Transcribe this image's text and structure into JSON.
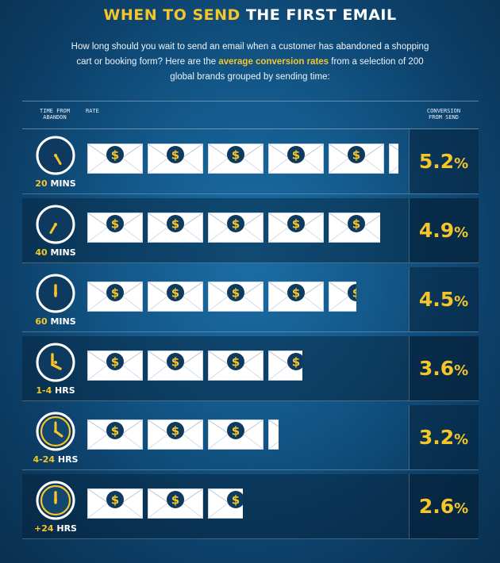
{
  "title": {
    "part1": "WHEN TO SEND",
    "part2": "THE FIRST EMAIL"
  },
  "intro": {
    "line_a": "How long should you wait to send an email when a customer has abandoned a shopping cart or booking form?  Here are the ",
    "highlight": "average conversion rates",
    "line_b": " from a selection of 200 global brands grouped by sending time:"
  },
  "columns": {
    "time": "TIME FROM ABANDON",
    "rate": "RATE",
    "conversion": "CONVERSION FROM SEND"
  },
  "colors": {
    "accent": "#f5c52a",
    "envelope": "#ffffff",
    "coin": "#0e3a5f"
  },
  "icon_names": {
    "clock": "clock-icon",
    "envelope": "envelope-dollar-icon"
  },
  "chart_data": {
    "type": "bar",
    "categories": [
      "20 MINS",
      "40 MINS",
      "60 MINS",
      "1-4 HRS",
      "4-24 HRS",
      "+24 HRS"
    ],
    "series": [
      {
        "values": [
          5.2,
          4.9,
          4.5,
          3.6,
          3.2,
          2.6
        ]
      }
    ],
    "unit": "%",
    "xlim": [
      0,
      5.2
    ]
  },
  "rows": [
    {
      "num": "20",
      "unit": " MINS",
      "value": "5.2",
      "pct": "%",
      "hand_deg": 150,
      "filled": false
    },
    {
      "num": "40",
      "unit": " MINS",
      "value": "4.9",
      "pct": "%",
      "hand_deg": 210,
      "filled": false
    },
    {
      "num": "60",
      "unit": " MINS",
      "value": "4.5",
      "pct": "%",
      "hand_deg": 0,
      "filled": false
    },
    {
      "num": "1-4",
      "unit": " HRS",
      "value": "3.6",
      "pct": "%",
      "hand_deg": 90,
      "filled": false
    },
    {
      "num": "4-24",
      "unit": " HRS",
      "value": "3.2",
      "pct": "%",
      "hand_deg": 90,
      "filled": true
    },
    {
      "num": "+24",
      "unit": " HRS",
      "value": "2.6",
      "pct": "%",
      "hand_deg": 0,
      "filled": true
    }
  ]
}
